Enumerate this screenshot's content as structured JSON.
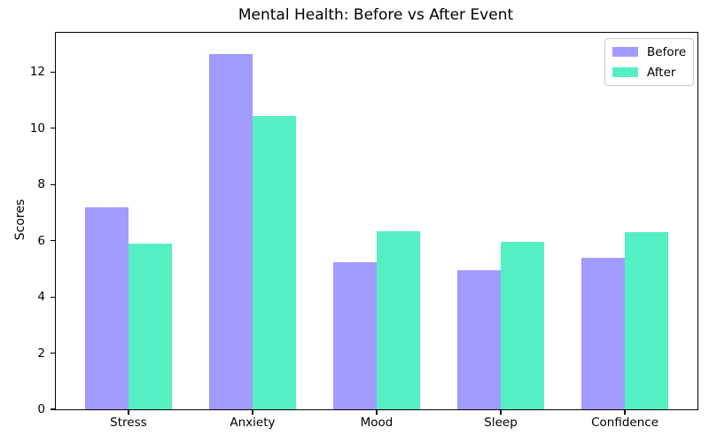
{
  "chart_data": {
    "type": "bar",
    "title": "Mental Health: Before vs After Event",
    "xlabel": "",
    "ylabel": "Scores",
    "categories": [
      "Stress",
      "Anxiety",
      "Mood",
      "Sleep",
      "Confidence"
    ],
    "series": [
      {
        "name": "Before",
        "color": "#a29bfe",
        "values": [
          7.2,
          12.65,
          5.25,
          4.95,
          5.4
        ]
      },
      {
        "name": "After",
        "color": "#55efc4",
        "values": [
          5.9,
          10.45,
          6.35,
          5.95,
          6.3
        ]
      }
    ],
    "ylim": [
      0,
      13.4
    ],
    "yticks": [
      0,
      2,
      4,
      6,
      8,
      10,
      12
    ],
    "grid": false,
    "legend_position": "upper right",
    "bar_width_fraction": 0.35,
    "axis_color": "#000000",
    "background_color": "#ffffff"
  }
}
